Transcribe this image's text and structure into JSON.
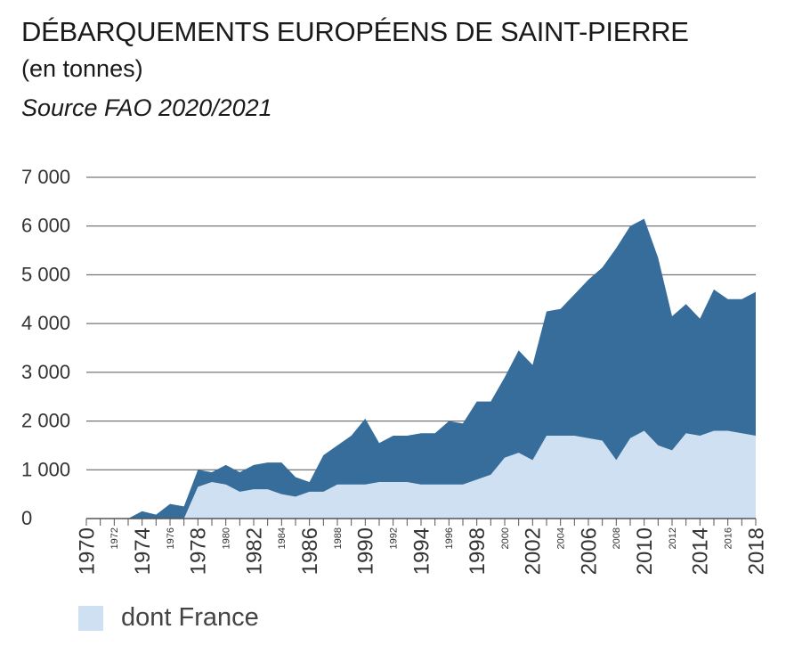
{
  "header": {
    "title": "DÉBARQUEMENTS EUROPÉENS DE SAINT-PIERRE",
    "subtitle": "(en tonnes)",
    "source": "Source FAO 2020/2021"
  },
  "legend": {
    "label": "dont France"
  },
  "colors": {
    "total": "#376d9b",
    "france": "#cfe0f2",
    "grid": "#555555",
    "text": "#333333"
  },
  "chart_data": {
    "type": "area",
    "ylim": [
      0,
      7000
    ],
    "xlim": [
      1970,
      2018
    ],
    "y_ticks": [
      {
        "value": 0,
        "label": "0"
      },
      {
        "value": 1000,
        "label": "1 000"
      },
      {
        "value": 2000,
        "label": "2 000"
      },
      {
        "value": 3000,
        "label": "3 000"
      },
      {
        "value": 4000,
        "label": "4 000"
      },
      {
        "value": 5000,
        "label": "5 000"
      },
      {
        "value": 6000,
        "label": "6 000"
      },
      {
        "value": 7000,
        "label": "7 000"
      }
    ],
    "x_ticks_major": [
      "1970",
      "1974",
      "1978",
      "1982",
      "1986",
      "1990",
      "1994",
      "1998",
      "2002",
      "2006",
      "2010",
      "2014",
      "2018"
    ],
    "x_ticks_minor": [
      "1972",
      "1976",
      "1980",
      "1984",
      "1988",
      "1992",
      "1996",
      "2000",
      "2004",
      "2008",
      "2012",
      "2016"
    ],
    "x": [
      1970,
      1971,
      1972,
      1973,
      1974,
      1975,
      1976,
      1977,
      1978,
      1979,
      1980,
      1981,
      1982,
      1983,
      1984,
      1985,
      1986,
      1987,
      1988,
      1989,
      1990,
      1991,
      1992,
      1993,
      1994,
      1995,
      1996,
      1997,
      1998,
      1999,
      2000,
      2001,
      2002,
      2003,
      2004,
      2005,
      2006,
      2007,
      2008,
      2009,
      2010,
      2011,
      2012,
      2013,
      2014,
      2015,
      2016,
      2017,
      2018
    ],
    "series": [
      {
        "key": "total",
        "values": [
          0,
          0,
          0,
          0,
          150,
          80,
          300,
          250,
          1000,
          950,
          1100,
          950,
          1100,
          1150,
          1150,
          850,
          750,
          1300,
          1500,
          1700,
          2050,
          1550,
          1700,
          1700,
          1750,
          1750,
          2000,
          1950,
          2400,
          2400,
          2900,
          3450,
          3150,
          4250,
          4300,
          4600,
          4900,
          5150,
          5550,
          6000,
          6150,
          5350,
          4150,
          4400,
          4100,
          4700,
          4500,
          4500,
          4650
        ]
      },
      {
        "key": "france",
        "name": "dont France",
        "values": [
          0,
          0,
          0,
          0,
          0,
          0,
          0,
          0,
          650,
          750,
          700,
          550,
          600,
          600,
          500,
          450,
          550,
          550,
          700,
          700,
          700,
          750,
          750,
          750,
          700,
          700,
          700,
          700,
          800,
          900,
          1250,
          1350,
          1200,
          1700,
          1700,
          1700,
          1650,
          1600,
          1200,
          1650,
          1800,
          1500,
          1400,
          1750,
          1700,
          1800,
          1800,
          1750,
          1700
        ]
      }
    ]
  }
}
